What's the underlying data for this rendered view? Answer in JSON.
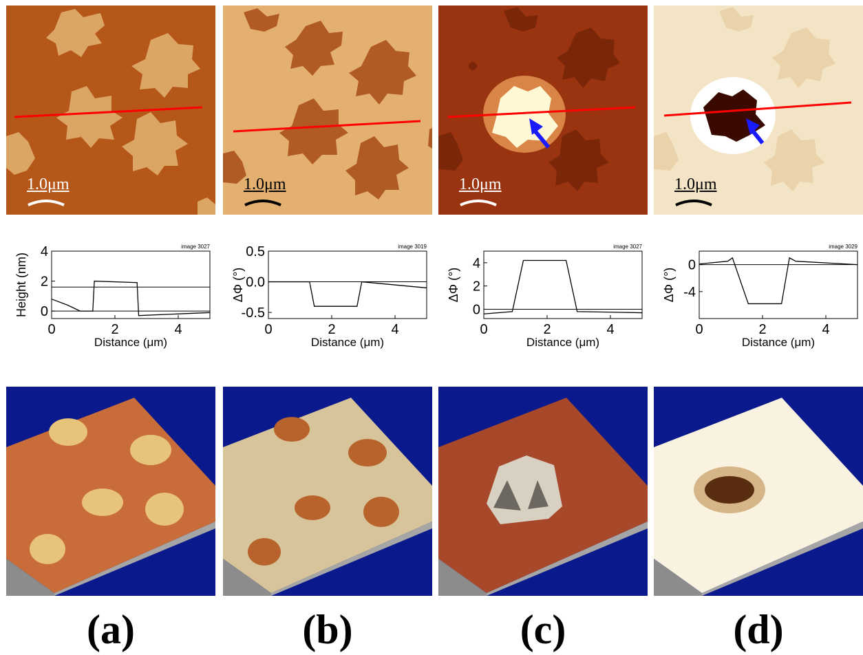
{
  "scale_bar": "1.0μm",
  "panels": [
    {
      "label": "(a)",
      "image_id": "image 3027",
      "ylabel": "Height (nm)",
      "xlabel": "Distance (μm)",
      "yticks": [
        "0",
        "2",
        "4"
      ],
      "xticks": [
        "0",
        "2",
        "4"
      ],
      "colors": {
        "bg": "#b6571a",
        "feature": "#dba564"
      }
    },
    {
      "label": "(b)",
      "image_id": "image 3019",
      "ylabel": "ΔΦ (°)",
      "xlabel": "Distance (μm)",
      "yticks": [
        "-0.5",
        "0.0",
        "0.5"
      ],
      "xticks": [
        "0",
        "2",
        "4"
      ],
      "colors": {
        "bg": "#e4b06f",
        "feature": "#b05a24"
      }
    },
    {
      "label": "(c)",
      "image_id": "image 3027",
      "ylabel": "ΔΦ (°)",
      "xlabel": "Distance (μm)",
      "yticks": [
        "0",
        "2",
        "4"
      ],
      "xticks": [
        "0",
        "2",
        "4"
      ],
      "colors": {
        "bg": "#9a3410",
        "feature": "#fff6c0"
      }
    },
    {
      "label": "(d)",
      "image_id": "image 3029",
      "ylabel": "ΔΦ (°)",
      "xlabel": "Distance (μm)",
      "yticks": [
        "-4",
        "0"
      ],
      "xticks": [
        "0",
        "2",
        "4"
      ],
      "colors": {
        "bg": "#f3e4c6",
        "feature": "#3a0a00"
      }
    }
  ],
  "chart_data": [
    {
      "type": "line",
      "xlim": [
        0,
        5
      ],
      "ylim": [
        -0.5,
        4
      ],
      "series": [
        {
          "x": [
            0,
            0.5,
            0.9,
            1.3,
            1.35,
            2.7,
            2.75,
            5
          ],
          "y": [
            0.8,
            0.4,
            0,
            0,
            2.0,
            1.9,
            -0.3,
            -0.1
          ]
        }
      ],
      "reference_lines": [
        0,
        1.6
      ]
    },
    {
      "type": "line",
      "xlim": [
        0,
        5
      ],
      "ylim": [
        -0.6,
        0.5
      ],
      "series": [
        {
          "x": [
            0,
            1.3,
            1.45,
            2.8,
            2.95,
            5
          ],
          "y": [
            0.0,
            0.0,
            -0.4,
            -0.4,
            0.0,
            -0.1
          ]
        }
      ],
      "reference_lines": [
        0
      ]
    },
    {
      "type": "line",
      "xlim": [
        0,
        5
      ],
      "ylim": [
        -0.8,
        5
      ],
      "series": [
        {
          "x": [
            0,
            0.9,
            1.25,
            2.6,
            2.95,
            5
          ],
          "y": [
            -0.4,
            -0.2,
            4.2,
            4.2,
            -0.2,
            -0.3
          ]
        }
      ],
      "reference_lines": [
        0
      ]
    },
    {
      "type": "line",
      "xlim": [
        0,
        5
      ],
      "ylim": [
        -8,
        2
      ],
      "series": [
        {
          "x": [
            0,
            0.9,
            1.05,
            1.55,
            2.6,
            2.85,
            3.05,
            5
          ],
          "y": [
            0.1,
            0.5,
            1.0,
            -5.8,
            -5.8,
            1.0,
            0.5,
            0
          ]
        }
      ],
      "reference_lines": [
        0
      ]
    }
  ]
}
